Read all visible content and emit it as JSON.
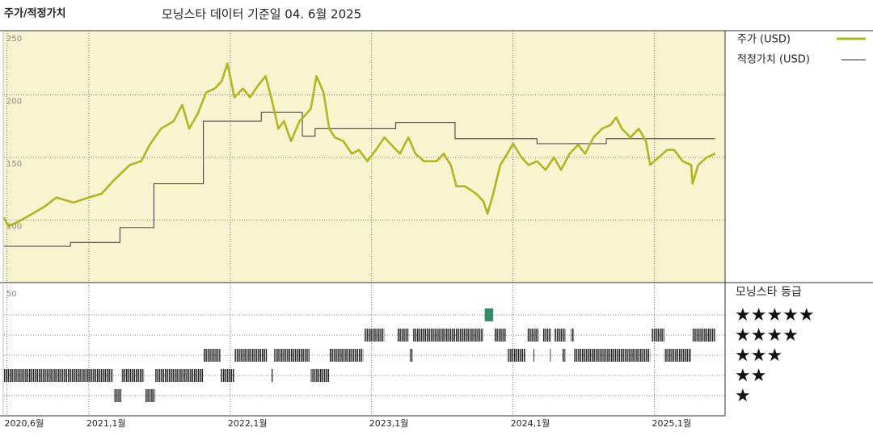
{
  "chart_data": {
    "type": "line",
    "title": "주가/적정가치",
    "subtitle": "모닝스타 데이터 기준일 04. 6월 2025",
    "xlim": [
      2020.4,
      2025.5
    ],
    "xticks": [
      {
        "value": 2020.42,
        "label": "2020,6월"
      },
      {
        "value": 2021,
        "label": "2021,1월"
      },
      {
        "value": 2022,
        "label": "2022,1월"
      },
      {
        "value": 2023,
        "label": "2023,1월"
      },
      {
        "value": 2024,
        "label": "2024,1월"
      },
      {
        "value": 2025,
        "label": "2025,1월"
      }
    ],
    "ylim": [
      50,
      250
    ],
    "yticks": [
      100,
      150,
      200,
      250
    ],
    "grid": true,
    "background": "#f8f4d0",
    "series": [
      {
        "name": "주가 (USD)",
        "color": "#b3b425",
        "x": [
          2020.4,
          2020.43,
          2020.49,
          2020.6,
          2020.69,
          2020.77,
          2020.89,
          2021.0,
          2021.09,
          2021.17,
          2021.29,
          2021.37,
          2021.43,
          2021.51,
          2021.6,
          2021.66,
          2021.71,
          2021.77,
          2021.83,
          2021.89,
          2021.94,
          2021.98,
          2022.03,
          2022.09,
          2022.14,
          2022.2,
          2022.25,
          2022.29,
          2022.34,
          2022.38,
          2022.43,
          2022.49,
          2022.54,
          2022.57,
          2022.61,
          2022.66,
          2022.7,
          2022.74,
          2022.8,
          2022.86,
          2022.91,
          2022.97,
          2023.03,
          2023.09,
          2023.14,
          2023.2,
          2023.26,
          2023.31,
          2023.37,
          2023.46,
          2023.51,
          2023.56,
          2023.6,
          2023.66,
          2023.74,
          2023.79,
          2023.82,
          2023.86,
          2023.91,
          2023.96,
          2024.0,
          2024.06,
          2024.11,
          2024.17,
          2024.23,
          2024.29,
          2024.34,
          2024.4,
          2024.46,
          2024.51,
          2024.57,
          2024.63,
          2024.69,
          2024.73,
          2024.77,
          2024.83,
          2024.89,
          2024.94,
          2024.97,
          2025.03,
          2025.09,
          2025.14,
          2025.2,
          2025.26,
          2025.27,
          2025.31,
          2025.37,
          2025.43
        ],
        "values": [
          102,
          95,
          98,
          105,
          111,
          118,
          114,
          118,
          121,
          131,
          144,
          147,
          160,
          173,
          179,
          192,
          173,
          185,
          202,
          205,
          211,
          225,
          198,
          205,
          198,
          208,
          215,
          198,
          173,
          179,
          163,
          179,
          185,
          189,
          215,
          202,
          173,
          166,
          163,
          153,
          156,
          147,
          156,
          166,
          160,
          153,
          166,
          153,
          147,
          147,
          153,
          144,
          127,
          127,
          121,
          115,
          105,
          121,
          144,
          153,
          161,
          150,
          144,
          147,
          140,
          150,
          140,
          153,
          160,
          153,
          166,
          173,
          176,
          182,
          173,
          166,
          173,
          163,
          144,
          150,
          156,
          156,
          147,
          144,
          129,
          144,
          150,
          153
        ]
      },
      {
        "name": "적정가치 (USD)",
        "color": "#555555",
        "step": true,
        "x": [
          2020.4,
          2020.87,
          2021.22,
          2021.46,
          2021.81,
          2022.22,
          2022.51,
          2022.6,
          2023.17,
          2023.59,
          2024.17,
          2024.66,
          2025.43
        ],
        "values": [
          79,
          82,
          94,
          129,
          179,
          186,
          167,
          173,
          178,
          165,
          161,
          165,
          165
        ]
      }
    ],
    "rating_panel_label": "50",
    "rating_title": "모닝스타 등급",
    "rating_levels": [
      {
        "stars": 5,
        "label": "★★★★★"
      },
      {
        "stars": 4,
        "label": "★★★★"
      },
      {
        "stars": 3,
        "label": "★★★"
      },
      {
        "stars": 2,
        "label": "★★"
      },
      {
        "stars": 1,
        "label": "★"
      }
    ],
    "rating_color": "#222222",
    "rating_periods": [
      {
        "start": 2020.4,
        "end": 2021.17,
        "stars": 2
      },
      {
        "start": 2021.18,
        "end": 2021.23,
        "stars": 1
      },
      {
        "start": 2021.23,
        "end": 2021.39,
        "stars": 2
      },
      {
        "start": 2021.4,
        "end": 2021.47,
        "stars": 1
      },
      {
        "start": 2021.47,
        "end": 2021.81,
        "stars": 2
      },
      {
        "start": 2021.81,
        "end": 2021.93,
        "stars": 3
      },
      {
        "start": 2021.93,
        "end": 2022.03,
        "stars": 2
      },
      {
        "start": 2022.03,
        "end": 2022.26,
        "stars": 3
      },
      {
        "start": 2022.29,
        "end": 2022.3,
        "stars": 2
      },
      {
        "start": 2022.31,
        "end": 2022.56,
        "stars": 3
      },
      {
        "start": 2022.57,
        "end": 2022.7,
        "stars": 2
      },
      {
        "start": 2022.7,
        "end": 2022.94,
        "stars": 3
      },
      {
        "start": 2022.95,
        "end": 2023.09,
        "stars": 4
      },
      {
        "start": 2023.18,
        "end": 2023.26,
        "stars": 4
      },
      {
        "start": 2023.27,
        "end": 2023.29,
        "stars": 3
      },
      {
        "start": 2023.29,
        "end": 2023.79,
        "stars": 4
      },
      {
        "start": 2023.8,
        "end": 2023.86,
        "stars": 5,
        "color": "#3a8a6a"
      },
      {
        "start": 2023.87,
        "end": 2023.95,
        "stars": 4
      },
      {
        "start": 2023.96,
        "end": 2024.09,
        "stars": 3
      },
      {
        "start": 2024.1,
        "end": 2024.18,
        "stars": 4
      },
      {
        "start": 2024.14,
        "end": 2024.15,
        "stars": 3
      },
      {
        "start": 2024.21,
        "end": 2024.27,
        "stars": 4
      },
      {
        "start": 2024.26,
        "end": 2024.27,
        "stars": 3
      },
      {
        "start": 2024.29,
        "end": 2024.37,
        "stars": 4
      },
      {
        "start": 2024.35,
        "end": 2024.37,
        "stars": 3
      },
      {
        "start": 2024.41,
        "end": 2024.43,
        "stars": 4
      },
      {
        "start": 2024.43,
        "end": 2024.97,
        "stars": 3
      },
      {
        "start": 2024.98,
        "end": 2025.07,
        "stars": 4
      },
      {
        "start": 2025.07,
        "end": 2025.26,
        "stars": 3
      },
      {
        "start": 2025.27,
        "end": 2025.43,
        "stars": 4
      }
    ]
  }
}
